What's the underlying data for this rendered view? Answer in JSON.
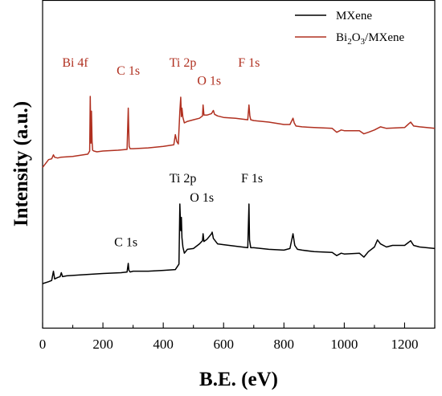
{
  "chart_data": {
    "type": "line",
    "xlabel": "B.E. (eV)",
    "ylabel": "Intensity (a.u.)",
    "xlim": [
      0,
      1300
    ],
    "x_ticks": [
      "0",
      "200",
      "400",
      "600",
      "800",
      "1000",
      "1200"
    ],
    "x_tick_values": [
      0,
      200,
      400,
      600,
      800,
      1000,
      1200
    ],
    "y_ticks_labeled": false,
    "grid": false,
    "legend_position": "top-right",
    "legend": [
      {
        "label_main": "MXene",
        "label_sub_parts": [],
        "color": "#000000"
      },
      {
        "label_main": "Bi",
        "label_sub_parts": [
          "2",
          "O",
          "3",
          "/MXene"
        ],
        "color": "#b03020"
      }
    ],
    "series": [
      {
        "name": "MXene",
        "color": "#000000",
        "x": [
          0,
          20,
          30,
          36,
          40,
          50,
          58,
          62,
          66,
          80,
          120,
          200,
          260,
          280,
          284,
          286,
          290,
          300,
          350,
          400,
          440,
          452,
          455,
          458,
          460,
          462,
          465,
          470,
          480,
          500,
          520,
          530,
          532,
          535,
          545,
          560,
          562,
          566,
          580,
          600,
          640,
          680,
          684,
          686,
          690,
          700,
          750,
          800,
          820,
          830,
          836,
          845,
          860,
          900,
          960,
          975,
          990,
          1000,
          1050,
          1065,
          1080,
          1100,
          1110,
          1120,
          1140,
          1160,
          1200,
          1220,
          1230,
          1250,
          1300
        ],
        "y": [
          0.7,
          0.95,
          1.1,
          2.3,
          1.3,
          1.5,
          1.6,
          2.1,
          1.6,
          1.7,
          1.8,
          2.0,
          2.1,
          2.2,
          3.3,
          2.4,
          2.2,
          2.3,
          2.3,
          2.4,
          2.5,
          3.2,
          10.9,
          7.5,
          9.2,
          6.6,
          5.4,
          4.6,
          5.1,
          5.2,
          5.8,
          6.2,
          7.1,
          6.1,
          6.4,
          7.1,
          7.3,
          6.5,
          5.8,
          5.7,
          5.5,
          5.3,
          10.9,
          6.3,
          5.3,
          5.3,
          5.1,
          5.0,
          5.2,
          7.1,
          5.6,
          5.1,
          5.0,
          4.8,
          4.7,
          4.3,
          4.6,
          4.5,
          4.6,
          4.1,
          4.8,
          5.4,
          6.3,
          5.8,
          5.4,
          5.6,
          5.6,
          6.2,
          5.6,
          5.4,
          5.2
        ]
      },
      {
        "name": "Bi₂O₃/MXene",
        "color": "#b03020",
        "x": [
          0,
          20,
          30,
          36,
          40,
          50,
          60,
          100,
          150,
          156,
          158,
          160,
          162,
          164,
          166,
          170,
          180,
          200,
          250,
          280,
          284,
          287,
          290,
          300,
          350,
          400,
          435,
          440,
          445,
          450,
          455,
          458,
          460,
          462,
          465,
          470,
          480,
          500,
          520,
          530,
          532,
          535,
          545,
          560,
          566,
          570,
          580,
          600,
          640,
          680,
          684,
          687,
          690,
          700,
          750,
          800,
          820,
          830,
          834,
          840,
          860,
          900,
          960,
          975,
          990,
          1000,
          1050,
          1065,
          1080,
          1100,
          1120,
          1140,
          1200,
          1220,
          1230,
          1250,
          1300
        ],
        "y": [
          15.6,
          16.6,
          16.7,
          17.2,
          16.9,
          16.8,
          16.9,
          17.0,
          17.3,
          17.7,
          24.7,
          18.7,
          22.8,
          18.9,
          17.8,
          17.7,
          17.6,
          17.7,
          17.8,
          17.9,
          23.2,
          18.3,
          18.0,
          18.0,
          18.1,
          18.3,
          18.5,
          19.8,
          18.9,
          18.6,
          22.8,
          24.6,
          22.1,
          23.2,
          22.0,
          21.3,
          21.5,
          21.7,
          21.9,
          22.2,
          23.6,
          22.3,
          22.3,
          22.5,
          22.9,
          22.4,
          22.2,
          22.0,
          21.9,
          21.7,
          23.6,
          22.2,
          21.7,
          21.6,
          21.4,
          21.1,
          21.1,
          21.9,
          21.3,
          20.9,
          20.8,
          20.7,
          20.6,
          20.1,
          20.4,
          20.3,
          20.3,
          19.9,
          20.1,
          20.4,
          20.8,
          20.6,
          20.7,
          21.4,
          20.9,
          20.8,
          20.6
        ]
      }
    ],
    "annotations": [
      {
        "text": "Bi 4f",
        "series": "Bi₂O₃/MXene",
        "x": 108,
        "y": 28.5
      },
      {
        "text": "C 1s",
        "series": "Bi₂O₃/MXene",
        "x": 284,
        "y": 27.5
      },
      {
        "text": "Ti 2p",
        "series": "Bi₂O₃/MXene",
        "x": 465,
        "y": 28.5
      },
      {
        "text": "O 1s",
        "series": "Bi₂O₃/MXene",
        "x": 552,
        "y": 26.2
      },
      {
        "text": "F 1s",
        "series": "Bi₂O₃/MXene",
        "x": 684,
        "y": 28.5
      },
      {
        "text": "Ti 2p",
        "series": "MXene",
        "x": 465,
        "y": 13.7
      },
      {
        "text": "O 1s",
        "series": "MXene",
        "x": 528,
        "y": 11.2
      },
      {
        "text": "F 1s",
        "series": "MXene",
        "x": 694,
        "y": 13.7
      },
      {
        "text": "C 1s",
        "series": "MXene",
        "x": 276,
        "y": 5.5
      }
    ],
    "annotation_colors": {
      "MXene": "#000000",
      "Bi₂O₃/MXene": "#b03020"
    }
  }
}
